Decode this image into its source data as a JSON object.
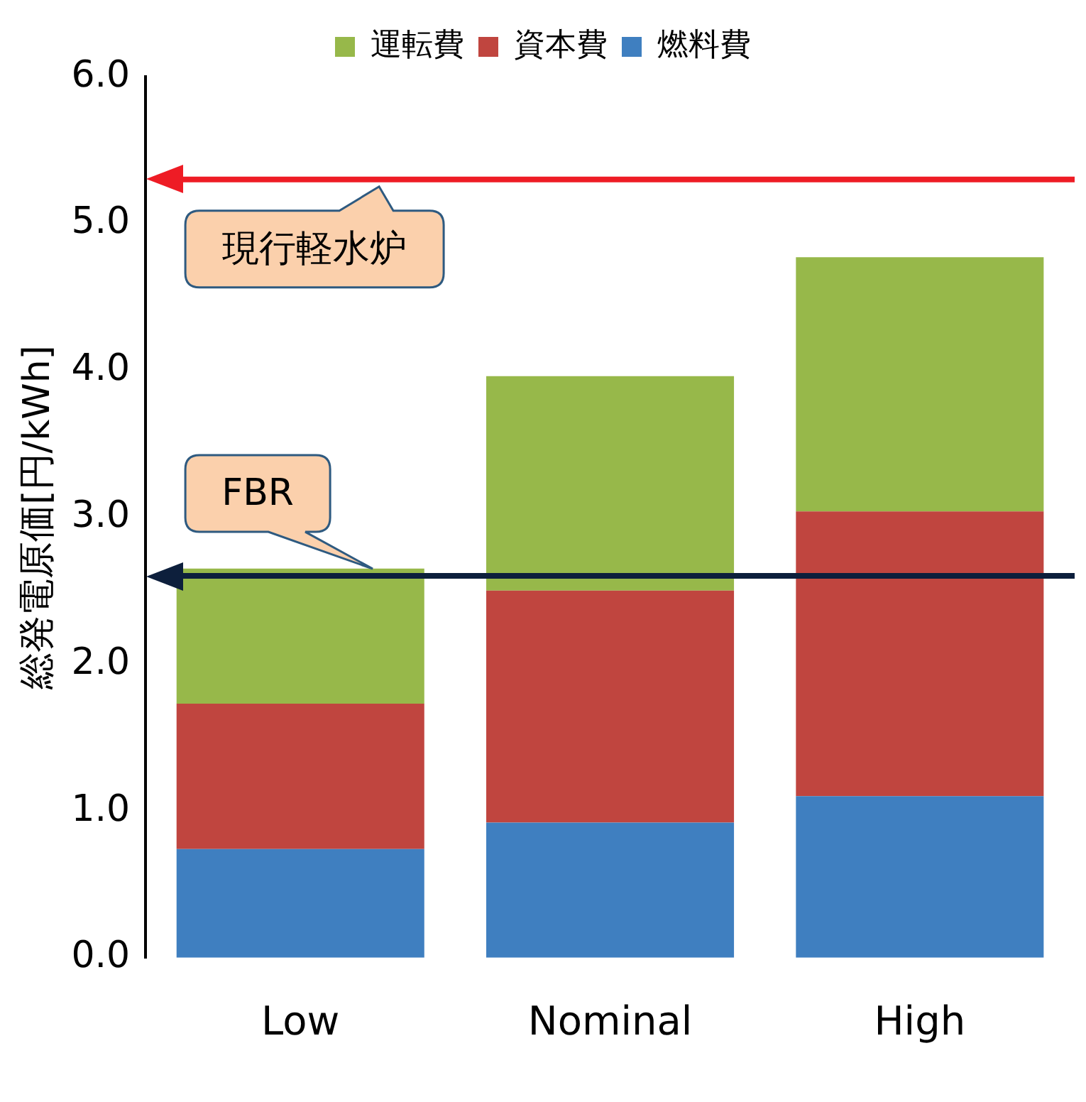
{
  "chart_data": {
    "type": "bar",
    "stacked": true,
    "ylabel": "総発電原価[円/kWh]",
    "categories": [
      "Low",
      "Nominal",
      "High"
    ],
    "series": [
      {
        "name": "燃料費",
        "color": "#3f7fc0",
        "values": [
          0.74,
          0.92,
          1.1
        ]
      },
      {
        "name": "資本費",
        "color": "#c0453f",
        "values": [
          0.99,
          1.58,
          1.94
        ]
      },
      {
        "name": "運転費",
        "color": "#97b84a",
        "values": [
          0.92,
          1.46,
          1.73
        ]
      }
    ],
    "ylim": [
      0,
      6
    ],
    "yticks": [
      {
        "value": 0,
        "label": "0.0"
      },
      {
        "value": 1,
        "label": "1.0"
      },
      {
        "value": 2,
        "label": "2.0"
      },
      {
        "value": 3,
        "label": "3.0"
      },
      {
        "value": 4,
        "label": "4.0"
      },
      {
        "value": 5,
        "label": "5.0"
      },
      {
        "value": 6,
        "label": "6.0"
      }
    ],
    "ref_lines": [
      {
        "axis": "y",
        "value": 5.3,
        "label": "現行軽水炉",
        "color": "#ee1c25"
      },
      {
        "axis": "y",
        "value": 2.6,
        "label": "FBR",
        "color": "#0d1f3c"
      }
    ],
    "grid": false,
    "legend": "top"
  }
}
